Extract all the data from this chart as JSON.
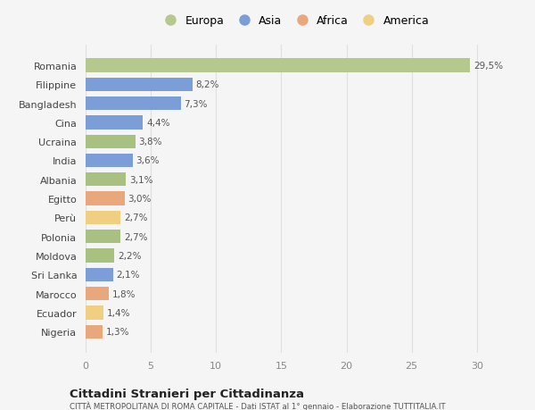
{
  "categories": [
    "Nigeria",
    "Ecuador",
    "Marocco",
    "Sri Lanka",
    "Moldova",
    "Polonia",
    "Perù",
    "Egitto",
    "Albania",
    "India",
    "Ucraina",
    "Cina",
    "Bangladesh",
    "Filippine",
    "Romania"
  ],
  "values": [
    1.3,
    1.4,
    1.8,
    2.1,
    2.2,
    2.7,
    2.7,
    3.0,
    3.1,
    3.6,
    3.8,
    4.4,
    7.3,
    8.2,
    29.5
  ],
  "labels": [
    "1,3%",
    "1,4%",
    "1,8%",
    "2,1%",
    "2,2%",
    "2,7%",
    "2,7%",
    "3,0%",
    "3,1%",
    "3,6%",
    "3,8%",
    "4,4%",
    "7,3%",
    "8,2%",
    "29,5%"
  ],
  "colors": [
    "#e8a87c",
    "#f0d080",
    "#e8a87c",
    "#7b9ed9",
    "#a8c080",
    "#a8c080",
    "#f0d080",
    "#e8a87c",
    "#a8c080",
    "#7b9ed9",
    "#a8c080",
    "#7b9ed9",
    "#7b9ed9",
    "#7b9ed9",
    "#b5c98e"
  ],
  "legend_labels": [
    "Europa",
    "Asia",
    "Africa",
    "America"
  ],
  "legend_colors": [
    "#b5c98e",
    "#7b9ed9",
    "#e8a87c",
    "#f0d080"
  ],
  "title": "Cittadini Stranieri per Cittadinanza",
  "subtitle": "CITTÀ METROPOLITANA DI ROMA CAPITALE - Dati ISTAT al 1° gennaio - Elaborazione TUTTITALIA.IT",
  "xlim": [
    0,
    32
  ],
  "xticks": [
    0,
    5,
    10,
    15,
    20,
    25,
    30
  ],
  "background_color": "#f5f5f5",
  "plot_bg_color": "#f5f5f5",
  "grid_color": "#e0e0e0"
}
